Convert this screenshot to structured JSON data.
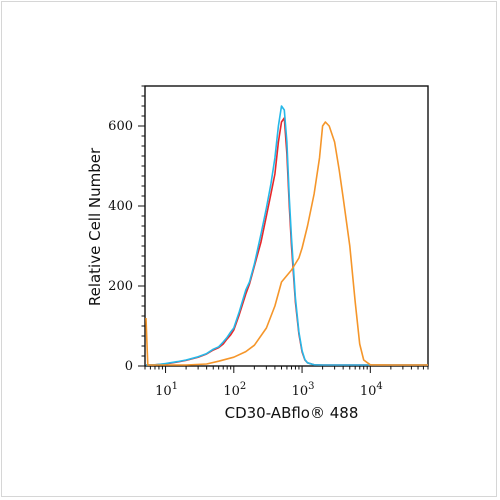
{
  "chart_data": {
    "type": "line",
    "title": "",
    "xlabel": "CD30-ABflo® 488",
    "ylabel": "Relative Cell Number",
    "x_scale": "log",
    "xlim": [
      5,
      70000
    ],
    "ylim": [
      0,
      700
    ],
    "y_ticks": [
      0,
      200,
      400,
      600
    ],
    "x_tick_labels": [
      {
        "base": "10",
        "exp": "1",
        "value": 10
      },
      {
        "base": "10",
        "exp": "2",
        "value": 100
      },
      {
        "base": "10",
        "exp": "3",
        "value": 1000
      },
      {
        "base": "10",
        "exp": "4",
        "value": 10000
      }
    ],
    "grid": false,
    "legend": "none",
    "series": [
      {
        "color": "#e8272a",
        "x": [
          5,
          6,
          7,
          8,
          10,
          15,
          20,
          30,
          40,
          50,
          60,
          70,
          80,
          90,
          100,
          120,
          150,
          170,
          200,
          250,
          300,
          350,
          400,
          450,
          500,
          550,
          600,
          650,
          700,
          800,
          900,
          1000,
          1100,
          1200,
          1500,
          2000,
          3000,
          5000,
          10000,
          70000
        ],
        "y": [
          0,
          0,
          3,
          4,
          5,
          10,
          14,
          22,
          30,
          40,
          46,
          55,
          68,
          78,
          90,
          128,
          180,
          205,
          250,
          310,
          375,
          430,
          480,
          560,
          610,
          620,
          530,
          400,
          300,
          160,
          80,
          35,
          15,
          8,
          3,
          1,
          0,
          0,
          0,
          0
        ]
      },
      {
        "color": "#26b8e8",
        "x": [
          5,
          6,
          7,
          8,
          10,
          15,
          20,
          30,
          40,
          50,
          60,
          70,
          80,
          90,
          100,
          120,
          150,
          170,
          200,
          250,
          300,
          350,
          400,
          450,
          500,
          550,
          600,
          650,
          700,
          800,
          900,
          1000,
          1100,
          1200,
          1500,
          2000,
          3000,
          5000,
          10000,
          70000
        ],
        "y": [
          0,
          0,
          3,
          4,
          6,
          11,
          15,
          23,
          31,
          42,
          48,
          60,
          72,
          85,
          95,
          135,
          190,
          210,
          255,
          330,
          395,
          455,
          520,
          600,
          650,
          640,
          560,
          420,
          320,
          170,
          85,
          38,
          16,
          8,
          3,
          1,
          0,
          0,
          0,
          0
        ]
      },
      {
        "color": "#f5962a",
        "x": [
          5,
          5.5,
          6,
          8,
          10,
          20,
          40,
          60,
          100,
          150,
          200,
          300,
          400,
          500,
          700,
          900,
          1000,
          1200,
          1500,
          1800,
          2000,
          2200,
          2500,
          3000,
          3500,
          4000,
          5000,
          6000,
          7000,
          8000,
          10000,
          20000,
          70000
        ],
        "y": [
          120,
          0,
          0,
          0,
          0,
          2,
          5,
          12,
          22,
          36,
          52,
          95,
          150,
          210,
          240,
          270,
          295,
          350,
          430,
          520,
          600,
          610,
          600,
          560,
          490,
          420,
          300,
          160,
          55,
          15,
          3,
          0,
          0
        ]
      }
    ]
  }
}
